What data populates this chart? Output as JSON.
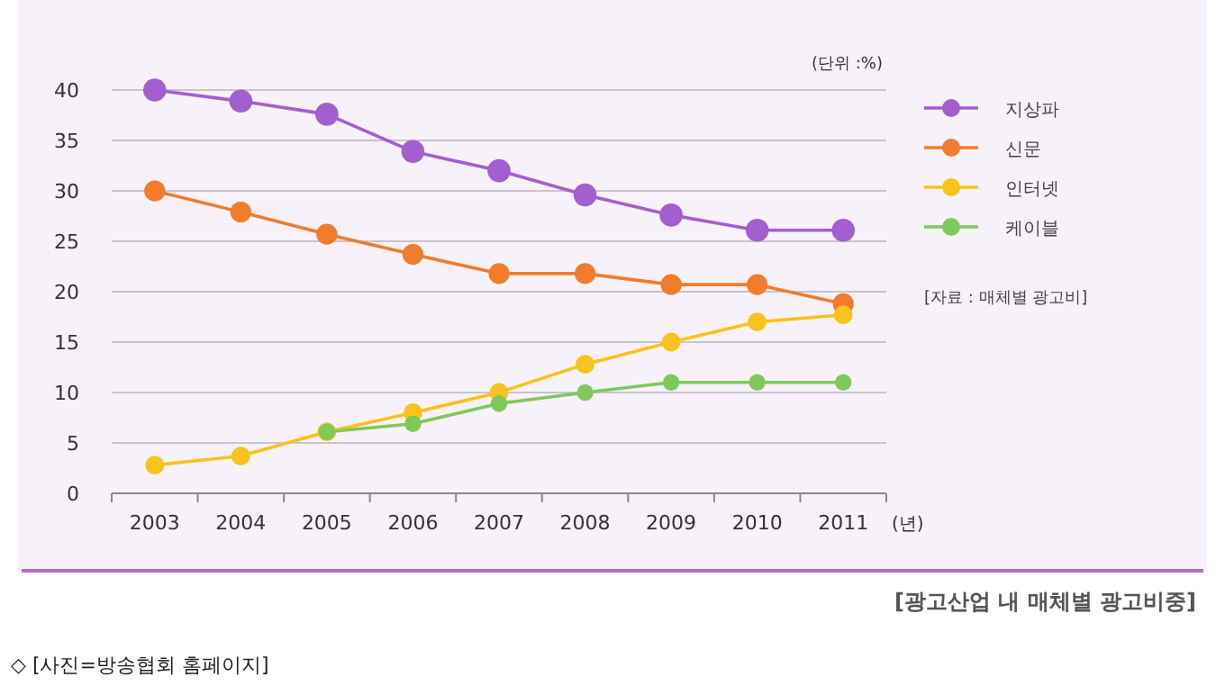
{
  "chart_data": {
    "type": "line",
    "title": "[광고산업 내 매체별 광고비중]",
    "xlabel": "(년)",
    "ylabel": "(단위 :%)",
    "categories": [
      "2003",
      "2004",
      "2005",
      "2006",
      "2007",
      "2008",
      "2009",
      "2010",
      "2011"
    ],
    "series": [
      {
        "name": "지상파",
        "color": "#a35ed0",
        "values": [
          40,
          38.9,
          37.6,
          33.9,
          32.0,
          29.6,
          27.6,
          26.1,
          26.1
        ]
      },
      {
        "name": "신문",
        "color": "#f07c2c",
        "values": [
          30,
          27.9,
          25.7,
          23.7,
          21.8,
          21.8,
          20.7,
          20.7,
          18.8
        ]
      },
      {
        "name": "인터넷",
        "color": "#f9c21c",
        "values": [
          2.8,
          3.7,
          6.1,
          8.0,
          10.0,
          12.8,
          15.0,
          17.0,
          17.7
        ]
      },
      {
        "name": "케이블",
        "color": "#7dc95a",
        "values": [
          null,
          null,
          6.1,
          6.9,
          8.9,
          10.0,
          11.0,
          11.0,
          11.0
        ]
      }
    ],
    "ylim": [
      0,
      40
    ],
    "yticks": [
      0,
      5,
      10,
      15,
      20,
      25,
      30,
      35,
      40
    ],
    "grid": "y",
    "legend": "right",
    "marker": "circle",
    "annotations": [
      "[자료 : 매체별 광고비]",
      "◇ [사진=방송협회 홈페이지]"
    ]
  }
}
